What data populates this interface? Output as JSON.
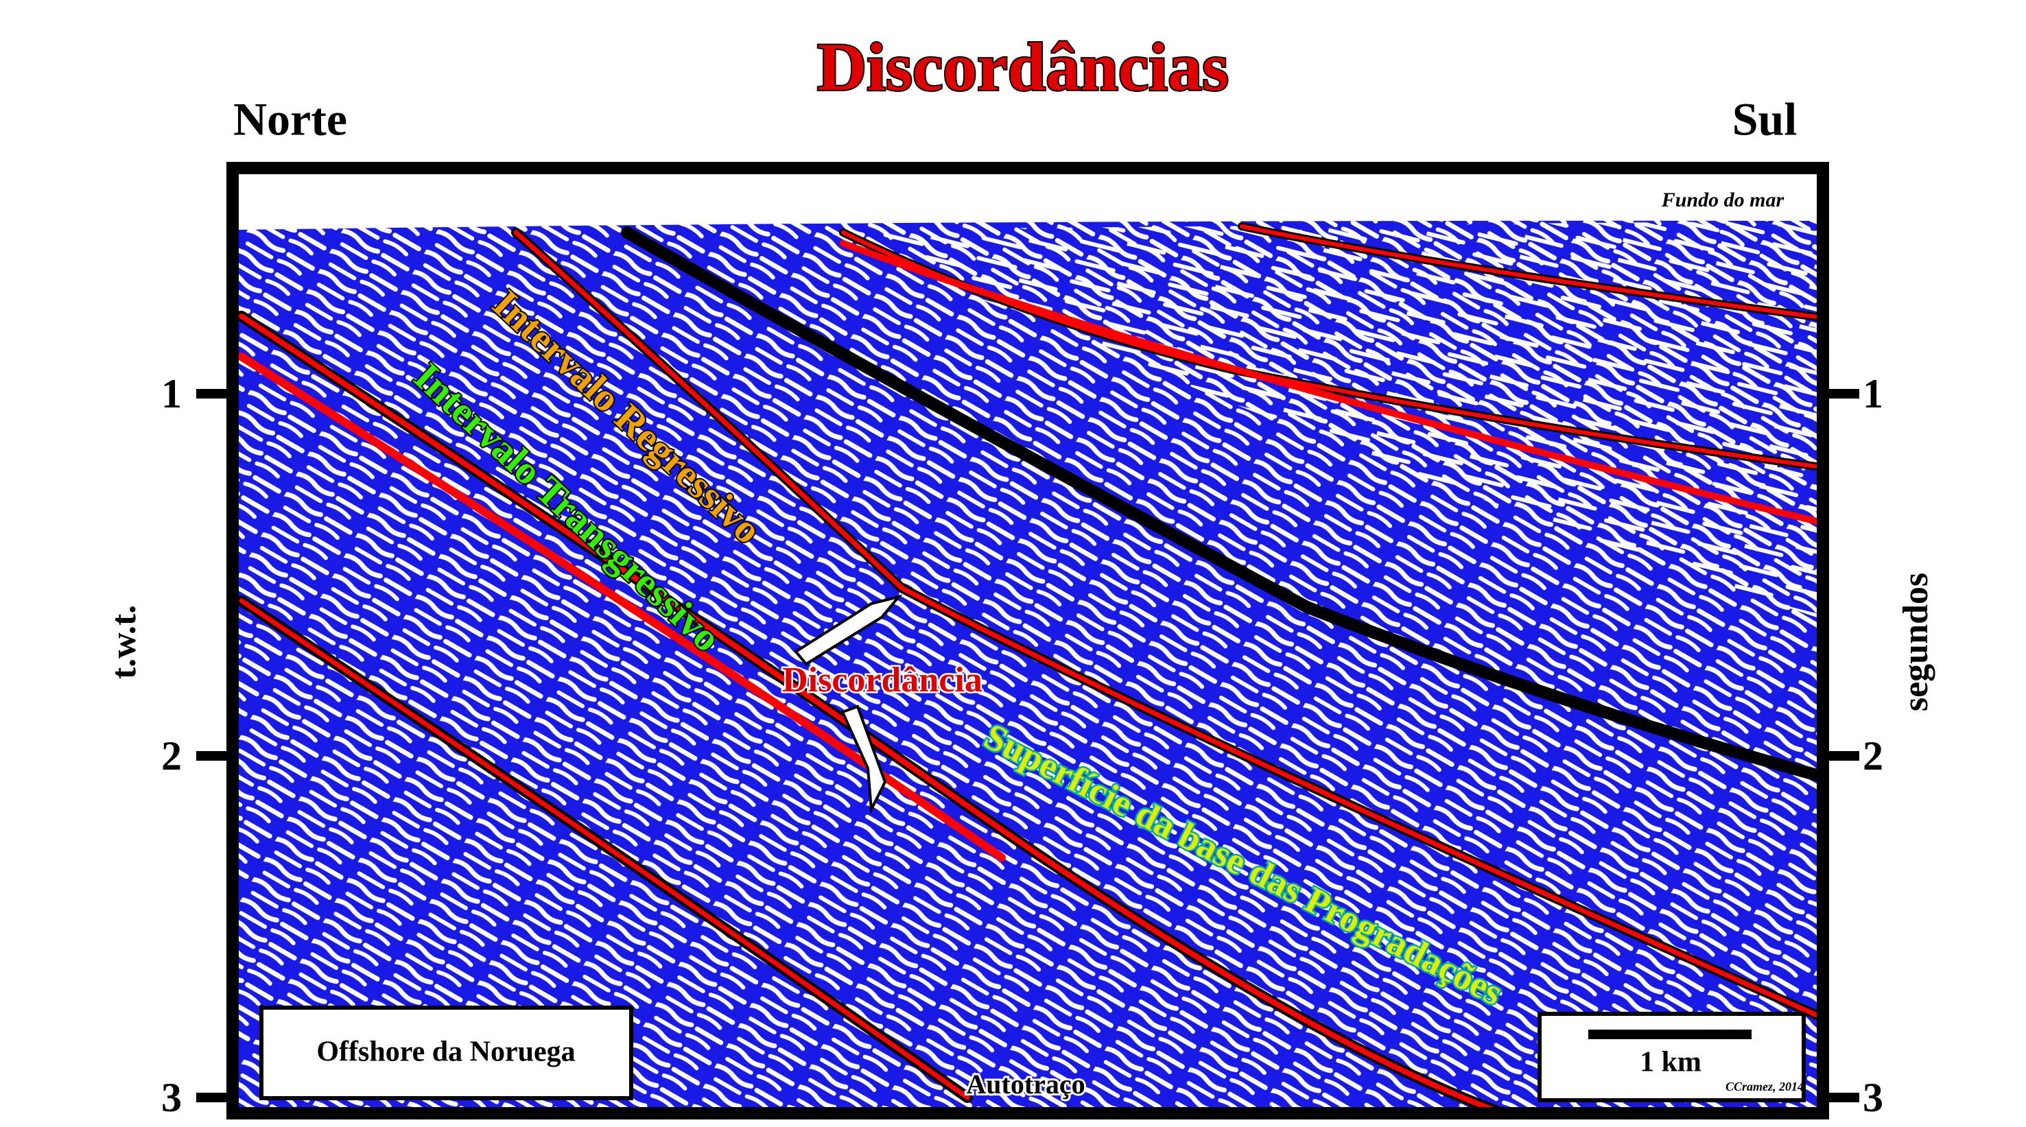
{
  "header": {
    "title": "Discordâncias",
    "left_direction": "Norte",
    "right_direction": "Sul"
  },
  "axes": {
    "left_label": "t.w.t.",
    "right_label": "segundos",
    "left_ticks": [
      "1",
      "2",
      "3"
    ],
    "right_ticks": [
      "1",
      "2",
      "3"
    ]
  },
  "annotations": {
    "seafloor": "Fundo do mar",
    "regressive": "Intervalo Regressivo",
    "transgressive": "Intervalo Transgressivo",
    "unconformity": "Discordância",
    "downlap_surface": "Superfície da base das Progradações",
    "trace": "Autotraço"
  },
  "location_box": {
    "text": "Offshore da Noruega"
  },
  "scale_box": {
    "scale": "1 km",
    "credit": "CCramez, 2014"
  }
}
